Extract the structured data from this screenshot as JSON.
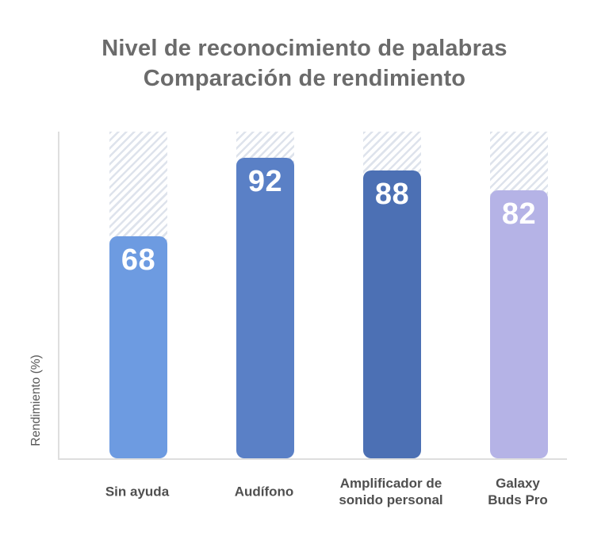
{
  "title": {
    "line1": "Nivel de reconocimiento de palabras",
    "line2": "Comparación de rendimiento"
  },
  "y_axis_label": "Rendimiento (%)",
  "chart_data": {
    "type": "bar",
    "title": "Nivel de reconocimiento de palabras — Comparación de rendimiento",
    "xlabel": "",
    "ylabel": "Rendimiento (%)",
    "ylim": [
      0,
      100
    ],
    "grid": false,
    "legend": "none",
    "categories": [
      "Sin ayuda",
      "Audífono",
      "Amplificador de sonido personal",
      "Galaxy Buds Pro"
    ],
    "values": [
      68,
      92,
      88,
      82
    ],
    "bar_colors": [
      "#6D9BE1",
      "#5A80C6",
      "#4C70B4",
      "#B5B3E6"
    ],
    "value_label_color": "#FFFFFF",
    "remainder_style": "diagonal-hatch-to-100"
  },
  "colors": {
    "background": "#FFFFFF",
    "title_text": "#6B6B6B",
    "axis_line": "#DEDEDE",
    "category_label": "#4F4F4F",
    "y_axis_label": "#595959",
    "hatch_stripe": "#DEE3EC"
  }
}
